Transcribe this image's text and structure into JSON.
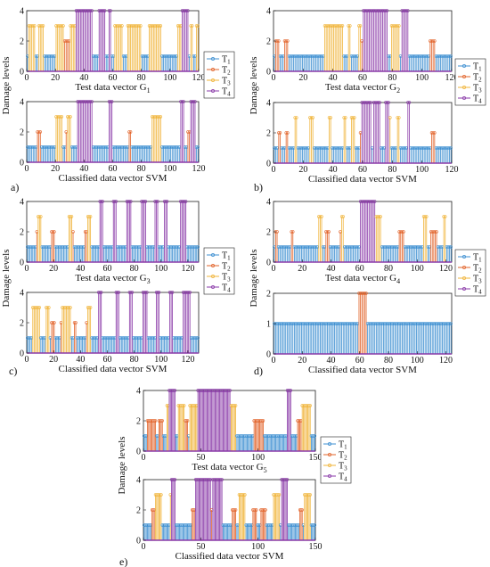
{
  "colors": {
    "T1": "#3d8fd1",
    "T2": "#e2632a",
    "T3": "#f0b43a",
    "T4": "#8a3aa8"
  },
  "legend": [
    "T1",
    "T2",
    "T3",
    "T4"
  ],
  "ylabel": "Damage levels",
  "chart_data": [
    {
      "panel": "a)",
      "type": "stem",
      "xlim": [
        0,
        120
      ],
      "ylim": [
        0,
        4
      ],
      "xticks": [
        "0",
        "20",
        "40",
        "60",
        "80",
        "100",
        "120"
      ],
      "yticks": [
        "0",
        "2",
        "4"
      ],
      "top": {
        "xlabel": "Test data vector G",
        "xsub": "1",
        "n": 120,
        "T2": [
          [
            22,
            33
          ]
        ],
        "T3": [
          [
            1,
            5
          ],
          [
            8,
            11
          ],
          [
            20,
            25
          ],
          [
            30,
            33
          ],
          [
            61,
            66
          ],
          [
            70,
            79
          ],
          [
            85,
            93
          ],
          [
            105,
            108
          ],
          [
            114,
            115
          ],
          [
            118,
            119
          ]
        ],
        "T4": [
          [
            34,
            45
          ],
          [
            50,
            54
          ],
          [
            57,
            58
          ],
          [
            108,
            112
          ]
        ]
      },
      "bottom": {
        "xlabel": "Classified data vector SVM",
        "n": 120,
        "T2": [
          [
            7,
            9
          ],
          [
            27,
            28
          ],
          [
            71,
            72
          ],
          [
            112,
            114
          ]
        ],
        "T3": [
          [
            20,
            24
          ],
          [
            28,
            30
          ],
          [
            37,
            38
          ],
          [
            87,
            93
          ]
        ],
        "T4": [
          [
            35,
            45
          ],
          [
            57,
            59
          ],
          [
            107,
            109
          ],
          [
            114,
            117
          ]
        ]
      }
    },
    {
      "panel": "b)",
      "type": "stem",
      "xlim": [
        0,
        120
      ],
      "ylim": [
        0,
        4
      ],
      "xticks": [
        "0",
        "20",
        "40",
        "60",
        "80",
        "100",
        "120"
      ],
      "yticks": [
        "0",
        "2",
        "4"
      ],
      "top": {
        "xlabel": "Test data vector G",
        "xsub": "2",
        "n": 120,
        "T2": [
          [
            1,
            3
          ],
          [
            7,
            9
          ],
          [
            58,
            63
          ],
          [
            105,
            108
          ]
        ],
        "T3": [
          [
            34,
            46
          ],
          [
            50,
            51
          ],
          [
            57,
            58
          ],
          [
            72,
            74
          ],
          [
            79,
            84
          ]
        ],
        "T4": [
          [
            60,
            76
          ],
          [
            86,
            90
          ]
        ]
      },
      "bottom": {
        "xlabel": "Classified data vector SVM",
        "n": 120,
        "T2": [
          [
            3,
            4
          ],
          [
            8,
            9
          ],
          [
            58,
            60
          ],
          [
            106,
            108
          ]
        ],
        "T3": [
          [
            14,
            15
          ],
          [
            24,
            26
          ],
          [
            37,
            38
          ],
          [
            47,
            48
          ],
          [
            52,
            54
          ],
          [
            76,
            78
          ],
          [
            83,
            84
          ]
        ],
        "T4": [
          [
            59,
            65
          ],
          [
            67,
            71
          ],
          [
            75,
            77
          ],
          [
            90,
            91
          ]
        ]
      }
    },
    {
      "panel": "c)",
      "type": "stem",
      "xlim": [
        0,
        128
      ],
      "ylim": [
        0,
        4
      ],
      "xticks": [
        "0",
        "20",
        "40",
        "60",
        "80",
        "100",
        "120"
      ],
      "yticks": [
        "0",
        "2",
        "4"
      ],
      "top": {
        "xlabel": "Test data vector G",
        "xsub": "3",
        "n": 128,
        "T2": [
          [
            7,
            10
          ],
          [
            18,
            20
          ],
          [
            33,
            34
          ],
          [
            43,
            44
          ]
        ],
        "T3": [
          [
            8,
            10
          ],
          [
            31,
            33
          ],
          [
            45,
            47
          ]
        ],
        "T4": [
          [
            54,
            56
          ],
          [
            64,
            66
          ],
          [
            74,
            77
          ],
          [
            85,
            88
          ],
          [
            95,
            97
          ],
          [
            102,
            104
          ],
          [
            114,
            118
          ]
        ]
      },
      "bottom": {
        "xlabel": "Classified data vector SVM",
        "n": 128,
        "T2": [
          [
            18,
            20
          ],
          [
            25,
            27
          ],
          [
            35,
            36
          ],
          [
            44,
            46
          ]
        ],
        "T3": [
          [
            4,
            9
          ],
          [
            14,
            16
          ],
          [
            26,
            32
          ],
          [
            45,
            47
          ]
        ],
        "T4": [
          [
            53,
            55
          ],
          [
            66,
            68
          ],
          [
            76,
            78
          ],
          [
            86,
            89
          ],
          [
            96,
            98
          ],
          [
            106,
            108
          ],
          [
            116,
            121
          ]
        ]
      }
    },
    {
      "panel": "d)",
      "type": "stem",
      "xlim": [
        0,
        124
      ],
      "ylim": [
        0,
        4
      ],
      "xticks": [
        "0",
        "20",
        "40",
        "60",
        "80",
        "100",
        "120"
      ],
      "yticks": [
        "0",
        "2",
        "4"
      ],
      "top": {
        "xlabel": "Test data vector G",
        "xsub": "4",
        "n": 124,
        "T2": [
          [
            1,
            2
          ],
          [
            12,
            13
          ],
          [
            36,
            38
          ],
          [
            46,
            48
          ],
          [
            87,
            90
          ],
          [
            109,
            113
          ]
        ],
        "T3": [
          [
            31,
            33
          ],
          [
            47,
            48
          ],
          [
            60,
            62
          ],
          [
            71,
            74
          ],
          [
            104,
            106
          ],
          [
            118,
            119
          ]
        ],
        "T4": [
          [
            60,
            70
          ]
        ]
      },
      "bottom": {
        "xlabel": "Classified data vector SVM",
        "n": 124,
        "ylim": [
          0,
          2
        ],
        "yticks": [
          "0",
          "1",
          "2"
        ],
        "T2": [
          [
            59,
            64
          ]
        ],
        "T3": [],
        "T4": []
      }
    },
    {
      "panel": "e)",
      "type": "stem",
      "xlim": [
        0,
        150
      ],
      "ylim": [
        0,
        4
      ],
      "xticks": [
        "0",
        "50",
        "100",
        "150"
      ],
      "yticks": [
        "0",
        "2",
        "4"
      ],
      "top": {
        "xlabel": "Test data vector G",
        "xsub": "5",
        "n": 150,
        "T2": [
          [
            3,
            10
          ],
          [
            13,
            16
          ],
          [
            33,
            38
          ],
          [
            60,
            75
          ],
          [
            96,
            104
          ],
          [
            134,
            138
          ]
        ],
        "T3": [
          [
            20,
            25
          ],
          [
            30,
            35
          ],
          [
            40,
            48
          ],
          [
            55,
            65
          ],
          [
            70,
            80
          ],
          [
            138,
            145
          ]
        ],
        "T4": [
          [
            22,
            27
          ],
          [
            47,
            75
          ],
          [
            125,
            128
          ]
        ]
      },
      "bottom": {
        "xlabel": "Classified data vector SVM",
        "n": 150,
        "T2": [
          [
            7,
            12
          ],
          [
            42,
            45
          ],
          [
            59,
            62
          ],
          [
            77,
            80
          ],
          [
            95,
            98
          ],
          [
            102,
            106
          ],
          [
            136,
            138
          ]
        ],
        "T3": [
          [
            10,
            15
          ],
          [
            23,
            25
          ],
          [
            45,
            50
          ],
          [
            62,
            66
          ],
          [
            83,
            88
          ],
          [
            113,
            118
          ],
          [
            140,
            145
          ]
        ],
        "T4": [
          [
            24,
            27
          ],
          [
            45,
            58
          ],
          [
            60,
            68
          ],
          [
            120,
            125
          ]
        ]
      }
    }
  ]
}
